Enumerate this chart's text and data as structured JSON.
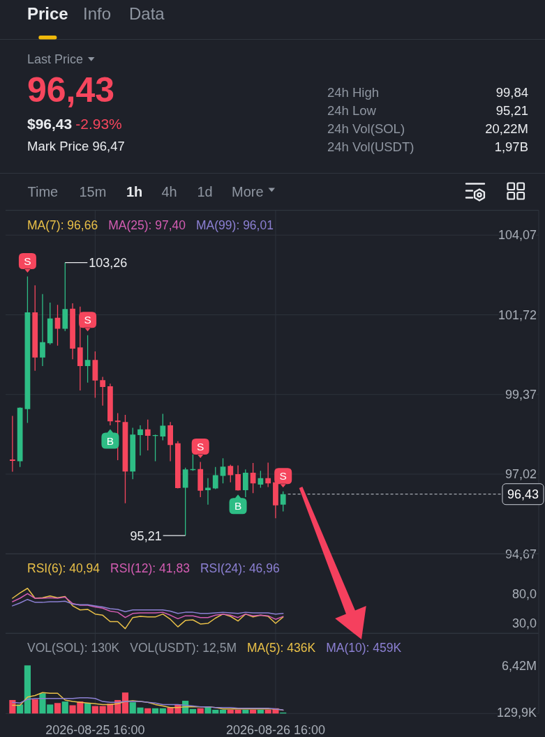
{
  "chart_data": [
    {
      "type": "other",
      "annotations": [
        "Price",
        "Info",
        "Data",
        "Last Price",
        "96,43",
        "$96,43",
        "-2.93%",
        "Mark Price 96,47",
        "24h High",
        "99,84",
        "24h Low",
        "95,21",
        "24h Vol(SOL)",
        "20,22M",
        "24h Vol(USDT)",
        "1,97B",
        "Time",
        "15m",
        "1h",
        "4h",
        "1d",
        "More"
      ]
    },
    {
      "type": "candlestick",
      "x": [
        "2026-08-25T05:00",
        "2026-08-25T06:00",
        "2026-08-25T07:00",
        "2026-08-25T08:00",
        "2026-08-25T09:00",
        "2026-08-25T10:00",
        "2026-08-25T11:00",
        "2026-08-25T12:00",
        "2026-08-25T13:00",
        "2026-08-25T14:00",
        "2026-08-25T15:00",
        "2026-08-25T16:00",
        "2026-08-25T17:00",
        "2026-08-25T18:00",
        "2026-08-25T19:00",
        "2026-08-25T20:00",
        "2026-08-25T21:00",
        "2026-08-25T22:00",
        "2026-08-25T23:00",
        "2026-08-26T00:00",
        "2026-08-26T01:00",
        "2026-08-26T02:00",
        "2026-08-26T03:00",
        "2026-08-26T04:00",
        "2026-08-26T05:00",
        "2026-08-26T06:00",
        "2026-08-26T07:00",
        "2026-08-26T08:00",
        "2026-08-26T09:00",
        "2026-08-26T10:00",
        "2026-08-26T11:00",
        "2026-08-26T12:00",
        "2026-08-26T13:00",
        "2026-08-26T14:00",
        "2026-08-26T15:00",
        "2026-08-26T16:00",
        "2026-08-26T17:00"
      ],
      "ohlc": [
        [
          97.45,
          98.74,
          97.09,
          97.41
        ],
        [
          97.4,
          98.99,
          97.23,
          98.98
        ],
        [
          98.94,
          102.85,
          98.53,
          101.79
        ],
        [
          101.79,
          102.59,
          100.07,
          100.46
        ],
        [
          100.46,
          102.33,
          100.21,
          100.91
        ],
        [
          100.88,
          102.08,
          100.84,
          101.61
        ],
        [
          101.63,
          102.01,
          100.81,
          101.31
        ],
        [
          101.31,
          103.26,
          101.24,
          101.89
        ],
        [
          101.9,
          102.06,
          100.41,
          100.72
        ],
        [
          100.76,
          101.96,
          99.49,
          100.21
        ],
        [
          100.21,
          101.12,
          99.72,
          100.39
        ],
        [
          100.39,
          100.64,
          99.27,
          99.78
        ],
        [
          99.79,
          99.89,
          99.04,
          99.59
        ],
        [
          99.61,
          99.69,
          98.46,
          98.58
        ],
        [
          98.6,
          98.82,
          97.43,
          98.56
        ],
        [
          98.56,
          98.77,
          96.16,
          97.1
        ],
        [
          97.1,
          98.39,
          96.87,
          98.19
        ],
        [
          98.17,
          98.46,
          97.57,
          98.34
        ],
        [
          98.34,
          98.63,
          97.72,
          98.15
        ],
        [
          98.15,
          98.19,
          97.4,
          98.17
        ],
        [
          98.13,
          98.8,
          98.02,
          98.45
        ],
        [
          98.46,
          98.56,
          97.4,
          97.88
        ],
        [
          97.93,
          97.99,
          96.6,
          96.61
        ],
        [
          96.62,
          97.21,
          95.21,
          97.16
        ],
        [
          97.14,
          97.6,
          97.12,
          97.17
        ],
        [
          97.17,
          97.38,
          96.34,
          96.53
        ],
        [
          96.55,
          96.9,
          96.12,
          96.62
        ],
        [
          96.6,
          97.23,
          96.58,
          96.99
        ],
        [
          96.97,
          97.49,
          96.75,
          97.24
        ],
        [
          97.26,
          97.3,
          96.78,
          96.99
        ],
        [
          97.02,
          97.28,
          96.53,
          96.54
        ],
        [
          96.55,
          97.16,
          96.34,
          97.06
        ],
        [
          97.06,
          97.35,
          96.46,
          96.75
        ],
        [
          96.71,
          97.12,
          96.62,
          96.9
        ],
        [
          96.9,
          97.36,
          96.64,
          96.75
        ],
        [
          96.78,
          96.85,
          95.72,
          96.1
        ],
        [
          96.12,
          96.51,
          95.92,
          96.43
        ]
      ],
      "colors": [
        "#f6465d",
        "#2ebd85",
        "#2ebd85",
        "#f6465d",
        "#2ebd85",
        "#2ebd85",
        "#f6465d",
        "#2ebd85",
        "#f6465d",
        "#f6465d",
        "#2ebd85",
        "#f6465d",
        "#f6465d",
        "#f6465d",
        "#f6465d",
        "#f6465d",
        "#2ebd85",
        "#2ebd85",
        "#f6465d",
        "#2ebd85",
        "#2ebd85",
        "#f6465d",
        "#f6465d",
        "#2ebd85",
        "#2ebd85",
        "#f6465d",
        "#2ebd85",
        "#2ebd85",
        "#2ebd85",
        "#f6465d",
        "#f6465d",
        "#2ebd85",
        "#f6465d",
        "#2ebd85",
        "#f6465d",
        "#f6465d",
        "#2ebd85"
      ],
      "xlim": [
        "2026-08-25T04:05",
        "2026-08-28T03:00"
      ],
      "xticks": [
        {
          "value": "2026-08-25T16:00",
          "label": null
        },
        {
          "value": "2026-08-26T16:00",
          "label": null
        }
      ],
      "ylim": [
        94.67,
        104.8
      ],
      "yticks": [
        {
          "value": 94.67,
          "label": "94,67"
        },
        {
          "value": 97.02,
          "label": "97,02"
        },
        {
          "value": 99.37,
          "label": "99,37"
        },
        {
          "value": 101.72,
          "label": "101,72"
        },
        {
          "value": 104.07,
          "label": "104,07"
        }
      ],
      "grid": true,
      "tick_labels": "y",
      "ref_lines": [
        {
          "axis": "y",
          "value": 96.43,
          "label": "96,43",
          "line_style": "dashed",
          "color": "#c9ced6"
        }
      ],
      "annotations": [
        "MA(7): 96,66",
        "MA(25): 97,40",
        "MA(99): 96,01",
        {
          "text": "S",
          "x": "2026-08-25T07:00",
          "y": 102.85
        },
        {
          "text": "S",
          "x": "2026-08-25T15:00",
          "y": 101.12
        },
        {
          "text": "B",
          "x": "2026-08-25T18:00",
          "y": 98.46
        },
        {
          "text": "S",
          "x": "2026-08-26T06:00",
          "y": 97.38
        },
        {
          "text": "B",
          "x": "2026-08-26T11:00",
          "y": 96.53
        },
        {
          "text": "S",
          "x": "2026-08-26T17:00",
          "y": 96.51
        },
        {
          "text": "103,26",
          "x": "2026-08-25T12:00",
          "y": 103.26
        },
        {
          "text": "95,21",
          "x": "2026-08-26T04:00",
          "y": 95.21
        }
      ]
    },
    {
      "type": "line",
      "x": [
        "2026-08-25T05:00",
        "2026-08-25T06:00",
        "2026-08-25T07:00",
        "2026-08-25T08:00",
        "2026-08-25T09:00",
        "2026-08-25T10:00",
        "2026-08-25T11:00",
        "2026-08-25T12:00",
        "2026-08-25T13:00",
        "2026-08-25T14:00",
        "2026-08-25T15:00",
        "2026-08-25T16:00",
        "2026-08-25T17:00",
        "2026-08-25T18:00",
        "2026-08-25T19:00",
        "2026-08-25T20:00",
        "2026-08-25T21:00",
        "2026-08-25T22:00",
        "2026-08-25T23:00",
        "2026-08-26T00:00",
        "2026-08-26T01:00",
        "2026-08-26T02:00",
        "2026-08-26T03:00",
        "2026-08-26T04:00",
        "2026-08-26T05:00",
        "2026-08-26T06:00",
        "2026-08-26T07:00",
        "2026-08-26T08:00",
        "2026-08-26T09:00",
        "2026-08-26T10:00",
        "2026-08-26T11:00",
        "2026-08-26T12:00",
        "2026-08-26T13:00",
        "2026-08-26T14:00",
        "2026-08-26T15:00",
        "2026-08-26T16:00",
        "2026-08-26T17:00"
      ],
      "series": [
        {
          "name": "RSI(6): 40,94",
          "color": "#e9c048",
          "values": [
            73,
            82,
            90,
            73,
            74,
            77,
            74,
            76,
            60,
            53,
            54,
            46,
            44,
            33,
            33,
            21,
            40,
            42,
            41,
            41,
            46,
            37,
            24,
            35,
            36,
            29,
            30,
            39,
            46,
            42,
            34,
            46,
            41,
            44,
            42,
            30,
            40.94
          ]
        },
        {
          "name": "RSI(12): 41,83",
          "color": "#d45db3",
          "values": [
            67,
            73,
            81,
            73,
            73,
            74,
            73,
            75,
            64,
            61,
            61,
            58,
            56,
            51,
            49,
            40,
            47,
            48,
            48,
            48,
            49,
            44,
            38,
            43,
            43,
            40,
            40,
            44,
            46,
            44,
            40,
            46,
            43,
            44,
            43,
            37,
            41.83
          ]
        },
        {
          "name": "RSI(24): 46,96",
          "color": "#8c80d3",
          "values": [
            60,
            65,
            71,
            66,
            66,
            67,
            67,
            68,
            63,
            62,
            62,
            60,
            58,
            55,
            54,
            50,
            53,
            53,
            53,
            53,
            53,
            51,
            47,
            49,
            49,
            47,
            47,
            48,
            49,
            48,
            47,
            49,
            48,
            48,
            48,
            46,
            46.96
          ]
        }
      ],
      "xlim": [
        "2026-08-25T04:05",
        "2026-08-28T03:00"
      ],
      "xticks": [
        {
          "value": "2026-08-25T16:00",
          "label": null
        },
        {
          "value": "2026-08-26T16:00",
          "label": null
        }
      ],
      "ylim": [
        13,
        149
      ],
      "yticks": [
        {
          "value": 30,
          "label": "30,0"
        },
        {
          "value": 80,
          "label": "80,0"
        }
      ],
      "grid": "x",
      "tick_labels": "y",
      "legend": "top left"
    },
    {
      "type": "bar",
      "x": [
        "2026-08-25T05:00",
        "2026-08-25T06:00",
        "2026-08-25T07:00",
        "2026-08-25T08:00",
        "2026-08-25T09:00",
        "2026-08-25T10:00",
        "2026-08-25T11:00",
        "2026-08-25T12:00",
        "2026-08-25T13:00",
        "2026-08-25T14:00",
        "2026-08-25T15:00",
        "2026-08-25T16:00",
        "2026-08-25T17:00",
        "2026-08-25T18:00",
        "2026-08-25T19:00",
        "2026-08-25T20:00",
        "2026-08-25T21:00",
        "2026-08-25T22:00",
        "2026-08-25T23:00",
        "2026-08-26T00:00",
        "2026-08-26T01:00",
        "2026-08-26T02:00",
        "2026-08-26T03:00",
        "2026-08-26T04:00",
        "2026-08-26T05:00",
        "2026-08-26T06:00",
        "2026-08-26T07:00",
        "2026-08-26T08:00",
        "2026-08-26T09:00",
        "2026-08-26T10:00",
        "2026-08-26T11:00",
        "2026-08-26T12:00",
        "2026-08-26T13:00",
        "2026-08-26T14:00",
        "2026-08-26T15:00",
        "2026-08-26T16:00",
        "2026-08-26T17:00"
      ],
      "series": [
        {
          "colors": [
            "#f6465d",
            "#2ebd85",
            "#2ebd85",
            "#f6465d",
            "#2ebd85",
            "#2ebd85",
            "#f6465d",
            "#2ebd85",
            "#f6465d",
            "#f6465d",
            "#2ebd85",
            "#f6465d",
            "#f6465d",
            "#f6465d",
            "#f6465d",
            "#f6465d",
            "#2ebd85",
            "#2ebd85",
            "#f6465d",
            "#2ebd85",
            "#2ebd85",
            "#f6465d",
            "#f6465d",
            "#2ebd85",
            "#2ebd85",
            "#f6465d",
            "#2ebd85",
            "#2ebd85",
            "#2ebd85",
            "#f6465d",
            "#f6465d",
            "#2ebd85",
            "#f6465d",
            "#2ebd85",
            "#f6465d",
            "#f6465d",
            "#2ebd85"
          ],
          "values": [
            1800000,
            1200000,
            6420000,
            1900000,
            2700000,
            1200000,
            1400000,
            1600000,
            1100000,
            1600000,
            1400000,
            1000000,
            1000000,
            1300000,
            1800000,
            2800000,
            1500000,
            800000,
            700000,
            700000,
            700000,
            800000,
            1200000,
            1700000,
            600000,
            700000,
            900000,
            500000,
            500000,
            500000,
            500000,
            500000,
            500000,
            500000,
            500000,
            700000,
            130000
          ]
        },
        {
          "type": "line",
          "name": "MA(5): 436K",
          "color": "#e9c048",
          "values": [
            1100000,
            1100000,
            2200000,
            2400000,
            2800000,
            2700000,
            2700000,
            1800000,
            1600000,
            1500000,
            1400000,
            1300000,
            1200000,
            1200000,
            1300000,
            1600000,
            1700000,
            1600000,
            1500000,
            1200000,
            1000000,
            800000,
            800000,
            900000,
            900000,
            900000,
            900000,
            800000,
            600000,
            600000,
            600000,
            600000,
            600000,
            600000,
            600000,
            600000,
            436000
          ]
        },
        {
          "type": "line",
          "name": "MA(10): 459K",
          "color": "#8c80d3",
          "values": [
            1500000,
            1400000,
            1900000,
            2000000,
            2000000,
            2000000,
            2000000,
            2000000,
            2000000,
            2100000,
            2100000,
            2000000,
            1600000,
            1500000,
            1500000,
            1600000,
            1600000,
            1600000,
            1500000,
            1400000,
            1200000,
            1200000,
            1200000,
            1100000,
            1000000,
            900000,
            900000,
            800000,
            800000,
            800000,
            700000,
            700000,
            700000,
            700000,
            700000,
            600000,
            459000
          ]
        }
      ],
      "xlim": [
        "2026-08-25T04:05",
        "2026-08-28T03:00"
      ],
      "xticks": [
        {
          "value": "2026-08-25T16:00",
          "label": "2026-08-25 16:00"
        },
        {
          "value": "2026-08-26T16:00",
          "label": "2026-08-26 16:00"
        }
      ],
      "ylim": [
        0,
        10700000
      ],
      "yticks": [
        {
          "value": 129900,
          "label": "129,9K"
        },
        {
          "value": 6420000,
          "label": "6,42M"
        }
      ],
      "grid": "x",
      "legend": "top",
      "annotations": [
        "VOL(SOL): 130K",
        "VOL(USDT): 12,5M"
      ]
    }
  ]
}
